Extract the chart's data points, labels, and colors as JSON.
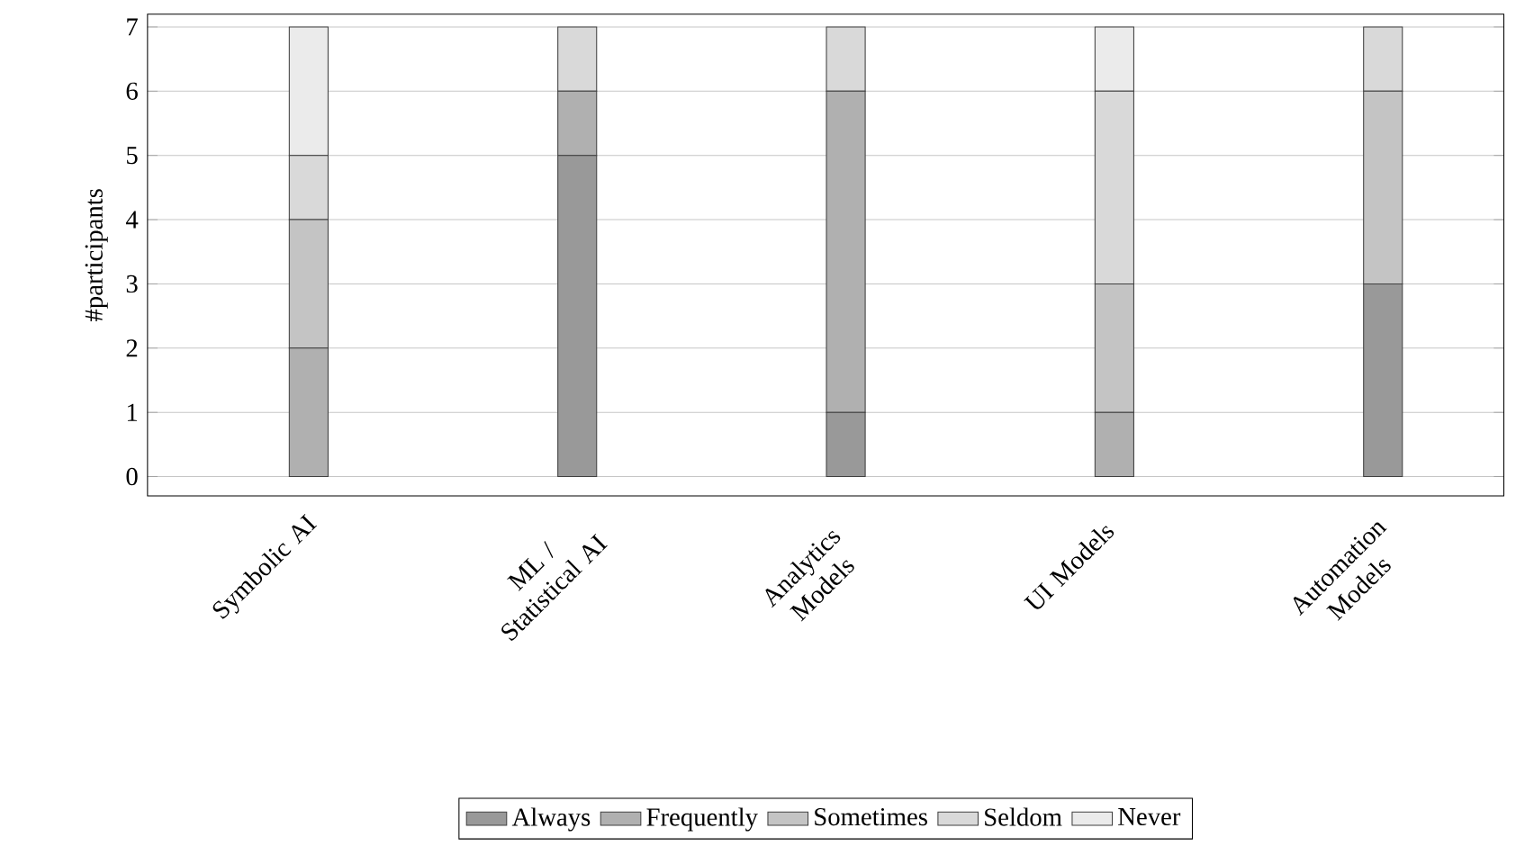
{
  "chart_data": {
    "type": "bar",
    "stacked": true,
    "ylabel": "#participants",
    "categories": [
      "Symbolic AI",
      "ML / Statistical AI",
      "Analytics Models",
      "UI Models",
      "Automation Models"
    ],
    "series": [
      {
        "name": "Always",
        "color": "#999999",
        "values": [
          0,
          5,
          1,
          0,
          3
        ]
      },
      {
        "name": "Frequently",
        "color": "#b0b0b0",
        "values": [
          2,
          1,
          5,
          1,
          0
        ]
      },
      {
        "name": "Sometimes",
        "color": "#c4c4c4",
        "values": [
          2,
          0,
          0,
          2,
          3
        ]
      },
      {
        "name": "Seldom",
        "color": "#d9d9d9",
        "values": [
          1,
          1,
          1,
          3,
          1
        ]
      },
      {
        "name": "Never",
        "color": "#ebebeb",
        "values": [
          2,
          0,
          0,
          1,
          0
        ]
      }
    ],
    "ylim": [
      -0.3,
      7.2
    ],
    "yticks": [
      0,
      1,
      2,
      3,
      4,
      5,
      6,
      7
    ],
    "grid": "y",
    "legend": "bottom"
  }
}
